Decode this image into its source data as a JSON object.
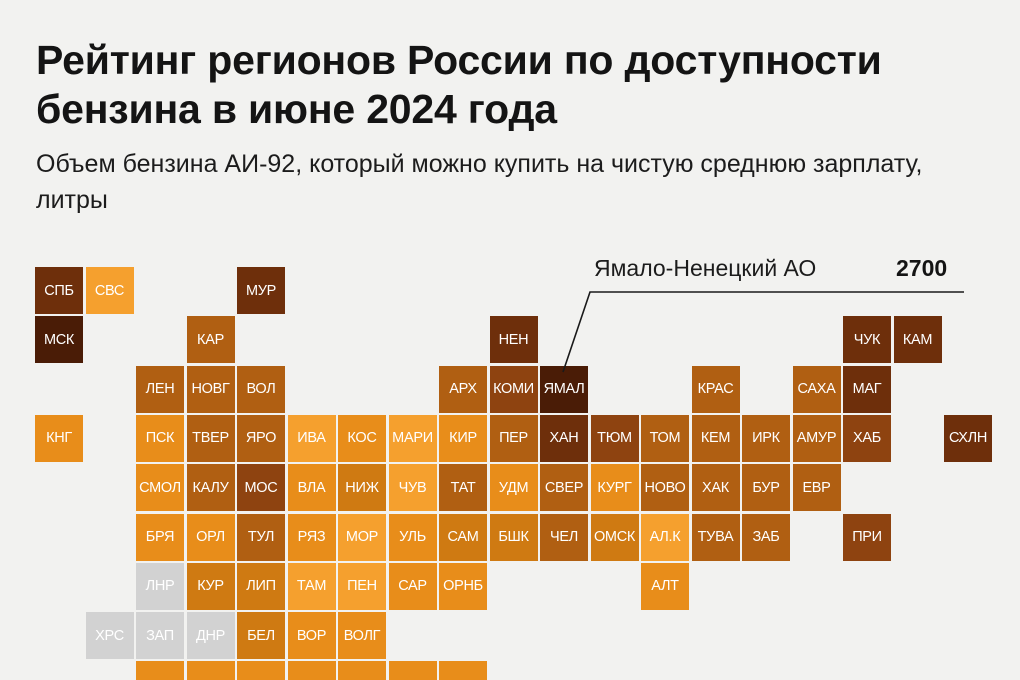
{
  "title": "Рейтинг регионов России по доступности бензина в июне 2024 года",
  "subtitle": "Объем бензина АИ-92, который можно купить на чистую среднюю зарплату, литры",
  "callout": {
    "region": "Ямало-Ненецкий АО",
    "value": "2700"
  },
  "palette": {
    "darkest": "#4a1c06",
    "dark": "#6e2f0b",
    "medium_dark": "#8e4310",
    "medium": "#b05f12",
    "medium_light": "#cf7a12",
    "light": "#e88d1a",
    "lightest": "#f5a02e",
    "no_data": "#d2d2d2"
  },
  "regions": [
    {
      "label": "СПБ",
      "col": 0,
      "row": 0,
      "shade": "dark"
    },
    {
      "label": "СВС",
      "col": 1,
      "row": 0,
      "shade": "lightest"
    },
    {
      "label": "МУР",
      "col": 4,
      "row": 0,
      "shade": "dark"
    },
    {
      "label": "МСК",
      "col": 0,
      "row": 1,
      "shade": "darkest"
    },
    {
      "label": "КАР",
      "col": 3,
      "row": 1,
      "shade": "medium"
    },
    {
      "label": "НЕН",
      "col": 9,
      "row": 1,
      "shade": "dark"
    },
    {
      "label": "ЧУК",
      "col": 16,
      "row": 1,
      "shade": "dark"
    },
    {
      "label": "КАМ",
      "col": 17,
      "row": 1,
      "shade": "dark"
    },
    {
      "label": "ЛЕН",
      "col": 2,
      "row": 2,
      "shade": "medium"
    },
    {
      "label": "НОВГ",
      "col": 3,
      "row": 2,
      "shade": "medium"
    },
    {
      "label": "ВОЛ",
      "col": 4,
      "row": 2,
      "shade": "medium"
    },
    {
      "label": "АРХ",
      "col": 8,
      "row": 2,
      "shade": "medium"
    },
    {
      "label": "КОМИ",
      "col": 9,
      "row": 2,
      "shade": "medium_dark"
    },
    {
      "label": "ЯМАЛ",
      "col": 10,
      "row": 2,
      "shade": "darkest"
    },
    {
      "label": "КРАС",
      "col": 13,
      "row": 2,
      "shade": "medium"
    },
    {
      "label": "САХА",
      "col": 15,
      "row": 2,
      "shade": "medium"
    },
    {
      "label": "МАГ",
      "col": 16,
      "row": 2,
      "shade": "dark"
    },
    {
      "label": "КНГ",
      "col": 0,
      "row": 3,
      "shade": "light"
    },
    {
      "label": "ПСК",
      "col": 2,
      "row": 3,
      "shade": "light"
    },
    {
      "label": "ТВЕР",
      "col": 3,
      "row": 3,
      "shade": "medium"
    },
    {
      "label": "ЯРО",
      "col": 4,
      "row": 3,
      "shade": "medium"
    },
    {
      "label": "ИВА",
      "col": 5,
      "row": 3,
      "shade": "lightest"
    },
    {
      "label": "КОС",
      "col": 6,
      "row": 3,
      "shade": "light"
    },
    {
      "label": "МАРИ",
      "col": 7,
      "row": 3,
      "shade": "lightest"
    },
    {
      "label": "КИР",
      "col": 8,
      "row": 3,
      "shade": "light"
    },
    {
      "label": "ПЕР",
      "col": 9,
      "row": 3,
      "shade": "medium"
    },
    {
      "label": "ХАН",
      "col": 10,
      "row": 3,
      "shade": "dark"
    },
    {
      "label": "ТЮМ",
      "col": 11,
      "row": 3,
      "shade": "medium_dark"
    },
    {
      "label": "ТОМ",
      "col": 12,
      "row": 3,
      "shade": "medium"
    },
    {
      "label": "КЕМ",
      "col": 13,
      "row": 3,
      "shade": "medium"
    },
    {
      "label": "ИРК",
      "col": 14,
      "row": 3,
      "shade": "medium"
    },
    {
      "label": "АМУР",
      "col": 15,
      "row": 3,
      "shade": "medium"
    },
    {
      "label": "ХАБ",
      "col": 16,
      "row": 3,
      "shade": "medium_dark"
    },
    {
      "label": "СХЛН",
      "col": 18,
      "row": 3,
      "shade": "dark"
    },
    {
      "label": "СМОЛ",
      "col": 2,
      "row": 4,
      "shade": "light"
    },
    {
      "label": "КАЛУ",
      "col": 3,
      "row": 4,
      "shade": "medium"
    },
    {
      "label": "МОС",
      "col": 4,
      "row": 4,
      "shade": "medium_dark"
    },
    {
      "label": "ВЛА",
      "col": 5,
      "row": 4,
      "shade": "light"
    },
    {
      "label": "НИЖ",
      "col": 6,
      "row": 4,
      "shade": "medium_light"
    },
    {
      "label": "ЧУВ",
      "col": 7,
      "row": 4,
      "shade": "lightest"
    },
    {
      "label": "ТАТ",
      "col": 8,
      "row": 4,
      "shade": "medium"
    },
    {
      "label": "УДМ",
      "col": 9,
      "row": 4,
      "shade": "light"
    },
    {
      "label": "СВЕР",
      "col": 10,
      "row": 4,
      "shade": "medium"
    },
    {
      "label": "КУРГ",
      "col": 11,
      "row": 4,
      "shade": "light"
    },
    {
      "label": "НОВО",
      "col": 12,
      "row": 4,
      "shade": "medium"
    },
    {
      "label": "ХАК",
      "col": 13,
      "row": 4,
      "shade": "medium"
    },
    {
      "label": "БУР",
      "col": 14,
      "row": 4,
      "shade": "medium"
    },
    {
      "label": "ЕВР",
      "col": 15,
      "row": 4,
      "shade": "medium"
    },
    {
      "label": "БРЯ",
      "col": 2,
      "row": 5,
      "shade": "light"
    },
    {
      "label": "ОРЛ",
      "col": 3,
      "row": 5,
      "shade": "light"
    },
    {
      "label": "ТУЛ",
      "col": 4,
      "row": 5,
      "shade": "medium"
    },
    {
      "label": "РЯЗ",
      "col": 5,
      "row": 5,
      "shade": "light"
    },
    {
      "label": "МОР",
      "col": 6,
      "row": 5,
      "shade": "lightest"
    },
    {
      "label": "УЛЬ",
      "col": 7,
      "row": 5,
      "shade": "light"
    },
    {
      "label": "САМ",
      "col": 8,
      "row": 5,
      "shade": "medium_light"
    },
    {
      "label": "БШК",
      "col": 9,
      "row": 5,
      "shade": "medium_light"
    },
    {
      "label": "ЧЕЛ",
      "col": 10,
      "row": 5,
      "shade": "medium"
    },
    {
      "label": "ОМСК",
      "col": 11,
      "row": 5,
      "shade": "medium_light"
    },
    {
      "label": "АЛ.К",
      "col": 12,
      "row": 5,
      "shade": "lightest"
    },
    {
      "label": "ТУВА",
      "col": 13,
      "row": 5,
      "shade": "medium"
    },
    {
      "label": "ЗАБ",
      "col": 14,
      "row": 5,
      "shade": "medium"
    },
    {
      "label": "ПРИ",
      "col": 16,
      "row": 5,
      "shade": "medium_dark"
    },
    {
      "label": "ЛНР",
      "col": 2,
      "row": 6,
      "shade": "no_data"
    },
    {
      "label": "КУР",
      "col": 3,
      "row": 6,
      "shade": "medium_light"
    },
    {
      "label": "ЛИП",
      "col": 4,
      "row": 6,
      "shade": "medium_light"
    },
    {
      "label": "ТАМ",
      "col": 5,
      "row": 6,
      "shade": "lightest"
    },
    {
      "label": "ПЕН",
      "col": 6,
      "row": 6,
      "shade": "lightest"
    },
    {
      "label": "САР",
      "col": 7,
      "row": 6,
      "shade": "light"
    },
    {
      "label": "ОРНБ",
      "col": 8,
      "row": 6,
      "shade": "light"
    },
    {
      "label": "АЛТ",
      "col": 12,
      "row": 6,
      "shade": "light"
    },
    {
      "label": "ХРС",
      "col": 1,
      "row": 7,
      "shade": "no_data"
    },
    {
      "label": "ЗАП",
      "col": 2,
      "row": 7,
      "shade": "no_data"
    },
    {
      "label": "ДНР",
      "col": 3,
      "row": 7,
      "shade": "no_data"
    },
    {
      "label": "БЕЛ",
      "col": 4,
      "row": 7,
      "shade": "medium_light"
    },
    {
      "label": "ВОР",
      "col": 5,
      "row": 7,
      "shade": "light"
    },
    {
      "label": "ВОЛГ",
      "col": 6,
      "row": 7,
      "shade": "light"
    },
    {
      "label": "",
      "col": 2,
      "row": 8,
      "shade": "light"
    },
    {
      "label": "",
      "col": 3,
      "row": 8,
      "shade": "light"
    },
    {
      "label": "",
      "col": 4,
      "row": 8,
      "shade": "light"
    },
    {
      "label": "",
      "col": 5,
      "row": 8,
      "shade": "light"
    },
    {
      "label": "",
      "col": 6,
      "row": 8,
      "shade": "light"
    },
    {
      "label": "",
      "col": 7,
      "row": 8,
      "shade": "light"
    },
    {
      "label": "",
      "col": 8,
      "row": 8,
      "shade": "light"
    }
  ]
}
